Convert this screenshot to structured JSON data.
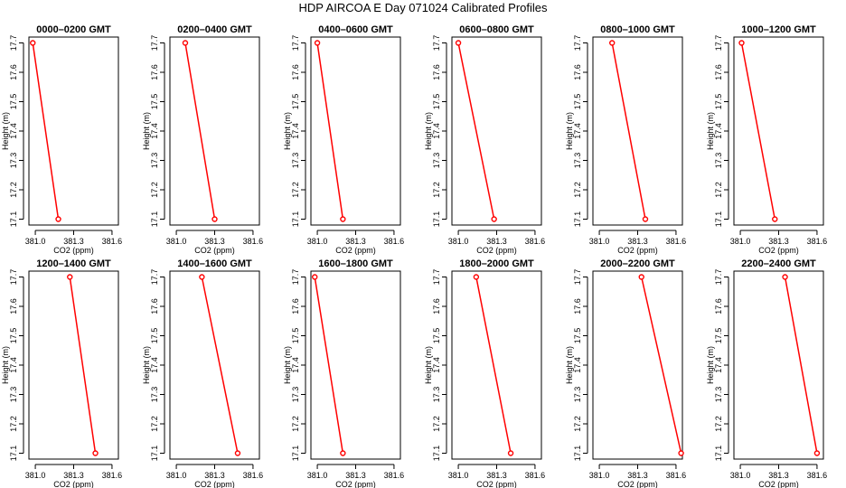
{
  "title": "HDP AIRCOA E  Day 071024  Calibrated Profiles",
  "colors": {
    "series": "#ff0000",
    "axis": "#000000",
    "background": "#ffffff"
  },
  "chart_data": [
    {
      "type": "line",
      "title": "0000–0200 GMT",
      "xlabel": "CO2 (ppm)",
      "ylabel": "Height (m)",
      "xlim": [
        380.95,
        381.65
      ],
      "ylim": [
        17.08,
        17.72
      ],
      "xticks": [
        "381.0",
        "381.3",
        "381.6"
      ],
      "yticks": [
        "17.1",
        "17.2",
        "17.3",
        "17.4",
        "17.5",
        "17.6",
        "17.7"
      ],
      "grid": false,
      "points": [
        {
          "x": 380.98,
          "y": 17.7
        },
        {
          "x": 381.18,
          "y": 17.1
        }
      ]
    },
    {
      "type": "line",
      "title": "0200–0400 GMT",
      "xlabel": "CO2 (ppm)",
      "ylabel": "Height (m)",
      "xlim": [
        380.95,
        381.65
      ],
      "ylim": [
        17.08,
        17.72
      ],
      "xticks": [
        "381.0",
        "381.3",
        "381.6"
      ],
      "yticks": [
        "17.1",
        "17.2",
        "17.3",
        "17.4",
        "17.5",
        "17.6",
        "17.7"
      ],
      "grid": false,
      "points": [
        {
          "x": 381.07,
          "y": 17.7
        },
        {
          "x": 381.3,
          "y": 17.1
        }
      ]
    },
    {
      "type": "line",
      "title": "0400–0600 GMT",
      "xlabel": "CO2 (ppm)",
      "ylabel": "Height (m)",
      "xlim": [
        380.95,
        381.65
      ],
      "ylim": [
        17.08,
        17.72
      ],
      "xticks": [
        "381.0",
        "381.3",
        "381.6"
      ],
      "yticks": [
        "17.1",
        "17.2",
        "17.3",
        "17.4",
        "17.5",
        "17.6",
        "17.7"
      ],
      "grid": false,
      "points": [
        {
          "x": 381.0,
          "y": 17.7
        },
        {
          "x": 381.2,
          "y": 17.1
        }
      ]
    },
    {
      "type": "line",
      "title": "0600–0800 GMT",
      "xlabel": "CO2 (ppm)",
      "ylabel": "Height (m)",
      "xlim": [
        380.95,
        381.65
      ],
      "ylim": [
        17.08,
        17.72
      ],
      "xticks": [
        "381.0",
        "381.3",
        "381.6"
      ],
      "yticks": [
        "17.1",
        "17.2",
        "17.3",
        "17.4",
        "17.5",
        "17.6",
        "17.7"
      ],
      "grid": false,
      "points": [
        {
          "x": 381.0,
          "y": 17.7
        },
        {
          "x": 381.28,
          "y": 17.1
        }
      ]
    },
    {
      "type": "line",
      "title": "0800–1000 GMT",
      "xlabel": "CO2 (ppm)",
      "ylabel": "Height (m)",
      "xlim": [
        380.95,
        381.65
      ],
      "ylim": [
        17.08,
        17.72
      ],
      "xticks": [
        "381.0",
        "381.3",
        "381.6"
      ],
      "yticks": [
        "17.1",
        "17.2",
        "17.3",
        "17.4",
        "17.5",
        "17.6",
        "17.7"
      ],
      "grid": false,
      "points": [
        {
          "x": 381.1,
          "y": 17.7
        },
        {
          "x": 381.36,
          "y": 17.1
        }
      ]
    },
    {
      "type": "line",
      "title": "1000–1200 GMT",
      "xlabel": "CO2 (ppm)",
      "ylabel": "Height (m)",
      "xlim": [
        380.95,
        381.65
      ],
      "ylim": [
        17.08,
        17.72
      ],
      "xticks": [
        "381.0",
        "381.3",
        "381.6"
      ],
      "yticks": [
        "17.1",
        "17.2",
        "17.3",
        "17.4",
        "17.5",
        "17.6",
        "17.7"
      ],
      "grid": false,
      "points": [
        {
          "x": 381.01,
          "y": 17.7
        },
        {
          "x": 381.27,
          "y": 17.1
        }
      ]
    },
    {
      "type": "line",
      "title": "1200–1400 GMT",
      "xlabel": "CO2 (ppm)",
      "ylabel": "Height (m)",
      "xlim": [
        380.95,
        381.65
      ],
      "ylim": [
        17.08,
        17.72
      ],
      "xticks": [
        "381.0",
        "381.3",
        "381.6"
      ],
      "yticks": [
        "17.1",
        "17.2",
        "17.3",
        "17.4",
        "17.5",
        "17.6",
        "17.7"
      ],
      "grid": false,
      "points": [
        {
          "x": 381.27,
          "y": 17.7
        },
        {
          "x": 381.47,
          "y": 17.1
        }
      ]
    },
    {
      "type": "line",
      "title": "1400–1600 GMT",
      "xlabel": "CO2 (ppm)",
      "ylabel": "Height (m)",
      "xlim": [
        380.95,
        381.65
      ],
      "ylim": [
        17.08,
        17.72
      ],
      "xticks": [
        "381.0",
        "381.3",
        "381.6"
      ],
      "yticks": [
        "17.1",
        "17.2",
        "17.3",
        "17.4",
        "17.5",
        "17.6",
        "17.7"
      ],
      "grid": false,
      "points": [
        {
          "x": 381.2,
          "y": 17.7
        },
        {
          "x": 381.48,
          "y": 17.1
        }
      ]
    },
    {
      "type": "line",
      "title": "1600–1800 GMT",
      "xlabel": "CO2 (ppm)",
      "ylabel": "Height (m)",
      "xlim": [
        380.95,
        381.65
      ],
      "ylim": [
        17.08,
        17.72
      ],
      "xticks": [
        "381.0",
        "381.3",
        "381.6"
      ],
      "yticks": [
        "17.1",
        "17.2",
        "17.3",
        "17.4",
        "17.5",
        "17.6",
        "17.7"
      ],
      "grid": false,
      "points": [
        {
          "x": 380.98,
          "y": 17.7
        },
        {
          "x": 381.2,
          "y": 17.1
        }
      ]
    },
    {
      "type": "line",
      "title": "1800–2000 GMT",
      "xlabel": "CO2 (ppm)",
      "ylabel": "Height (m)",
      "xlim": [
        380.95,
        381.65
      ],
      "ylim": [
        17.08,
        17.72
      ],
      "xticks": [
        "381.0",
        "381.3",
        "381.6"
      ],
      "yticks": [
        "17.1",
        "17.2",
        "17.3",
        "17.4",
        "17.5",
        "17.6",
        "17.7"
      ],
      "grid": false,
      "points": [
        {
          "x": 381.14,
          "y": 17.7
        },
        {
          "x": 381.41,
          "y": 17.1
        }
      ]
    },
    {
      "type": "line",
      "title": "2000–2200 GMT",
      "xlabel": "CO2 (ppm)",
      "ylabel": "Height (m)",
      "xlim": [
        380.95,
        381.65
      ],
      "ylim": [
        17.08,
        17.72
      ],
      "xticks": [
        "381.0",
        "381.3",
        "381.6"
      ],
      "yticks": [
        "17.1",
        "17.2",
        "17.3",
        "17.4",
        "17.5",
        "17.6",
        "17.7"
      ],
      "grid": false,
      "points": [
        {
          "x": 381.33,
          "y": 17.7
        },
        {
          "x": 381.64,
          "y": 17.1
        }
      ]
    },
    {
      "type": "line",
      "title": "2200–2400 GMT",
      "xlabel": "CO2 (ppm)",
      "ylabel": "Height (m)",
      "xlim": [
        380.95,
        381.65
      ],
      "ylim": [
        17.08,
        17.72
      ],
      "xticks": [
        "381.0",
        "381.3",
        "381.6"
      ],
      "yticks": [
        "17.1",
        "17.2",
        "17.3",
        "17.4",
        "17.5",
        "17.6",
        "17.7"
      ],
      "grid": false,
      "points": [
        {
          "x": 381.35,
          "y": 17.7
        },
        {
          "x": 381.6,
          "y": 17.1
        }
      ]
    }
  ]
}
